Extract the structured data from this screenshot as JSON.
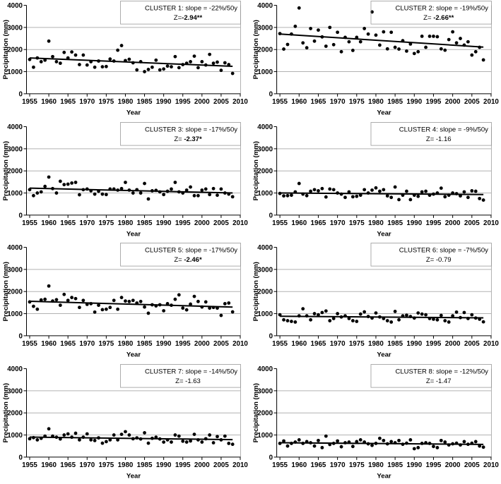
{
  "figure": {
    "description": "Annual precipitation time series and linear trends for eight clusters"
  },
  "colors": {
    "axis": "#000000",
    "grid": "#b2b2b2",
    "plot_right_border": "#b2b2b2",
    "marker": "#000000",
    "trend": "#000000",
    "annotation_border": "#999999",
    "background": "#ffffff"
  },
  "chart_data": {
    "type": "scatter",
    "xlabel": "Year",
    "ylabel": "Precipitation (mm)",
    "xlim": [
      1955,
      2010
    ],
    "ylim": [
      0,
      4000
    ],
    "xticks": [
      1955,
      1960,
      1965,
      1970,
      1975,
      1980,
      1985,
      1990,
      1995,
      2000,
      2005,
      2010
    ],
    "yticks": [
      0,
      1000,
      2000,
      3000,
      4000
    ],
    "gridlines_y": [
      1000,
      2000,
      3000
    ],
    "legend_position": "none",
    "start_year": 1955,
    "trend_end_year": 2008,
    "clusters": [
      {
        "label": "CLUSTER 1: slope = -22%/50y",
        "z_prefix": "Z=",
        "z_value": "-2.94**",
        "z_bold": true,
        "trend": [
          1620,
          1240
        ],
        "values": [
          1550,
          1200,
          1620,
          1450,
          1520,
          2380,
          1680,
          1450,
          1380,
          1870,
          1620,
          1890,
          1750,
          1320,
          1750,
          1300,
          1450,
          1200,
          1480,
          1220,
          1230,
          1570,
          1480,
          1970,
          2180,
          1500,
          1560,
          1400,
          1080,
          1450,
          1000,
          1100,
          1200,
          1520,
          1080,
          1120,
          1250,
          1220,
          1680,
          1180,
          1320,
          1380,
          1450,
          1700,
          1180,
          1450,
          1300,
          1780,
          1380,
          1430,
          1060,
          1400,
          1320,
          920
        ]
      },
      {
        "label": "CLUSTER 2: slope = -19%/50y",
        "z_prefix": "Z= ",
        "z_value": "-2.66**",
        "z_bold": true,
        "trend": [
          2700,
          2110
        ],
        "values": [
          2720,
          2020,
          2230,
          2700,
          3050,
          3880,
          2300,
          2080,
          2950,
          2380,
          2880,
          2570,
          2150,
          3000,
          2220,
          2780,
          1900,
          2550,
          2350,
          1960,
          2550,
          2350,
          2950,
          2700,
          3700,
          2650,
          2200,
          2800,
          2030,
          2780,
          2100,
          2020,
          2400,
          1930,
          2250,
          1820,
          1900,
          2600,
          2100,
          2600,
          2600,
          2580,
          2030,
          1970,
          2450,
          2800,
          2300,
          2500,
          2200,
          2350,
          1750,
          1900,
          2100,
          1530
        ]
      },
      {
        "label": "CLUSTER 3: slope = -17%/50y",
        "z_prefix": "Z= ",
        "z_value": "-2.37*",
        "z_bold": true,
        "trend": [
          1220,
          1000
        ],
        "values": [
          1150,
          880,
          1000,
          1050,
          1300,
          1720,
          1200,
          1000,
          1530,
          1380,
          1400,
          1450,
          1480,
          920,
          1150,
          1180,
          1100,
          950,
          1080,
          950,
          930,
          1180,
          1180,
          1130,
          1200,
          1480,
          1130,
          1000,
          1150,
          1000,
          1430,
          730,
          1100,
          1120,
          1050,
          930,
          1080,
          1180,
          1480,
          1050,
          1000,
          1130,
          1270,
          880,
          880,
          1130,
          1180,
          930,
          1200,
          900,
          1180,
          1000,
          950,
          830
        ]
      },
      {
        "label": "CLUSTER 4: slope = -9%/50y",
        "z_prefix": "Z= ",
        "z_value": "-1.16",
        "z_bold": false,
        "trend": [
          1000,
          930
        ],
        "values": [
          980,
          870,
          880,
          900,
          1050,
          1430,
          950,
          880,
          1080,
          1150,
          1100,
          1200,
          820,
          1180,
          1150,
          1000,
          950,
          800,
          1050,
          830,
          850,
          900,
          1150,
          1000,
          1130,
          1230,
          1080,
          1150,
          870,
          800,
          1270,
          700,
          900,
          1080,
          700,
          900,
          850,
          1050,
          1080,
          900,
          950,
          1000,
          1220,
          830,
          900,
          1000,
          970,
          870,
          1050,
          800,
          1100,
          1080,
          750,
          680
        ]
      },
      {
        "label": "CLUSTER 5: slope = -17%/50y",
        "z_prefix": "Z= ",
        "z_value": "-2.46*",
        "z_bold": true,
        "trend": [
          1560,
          1295
        ],
        "values": [
          1530,
          1330,
          1200,
          1620,
          1650,
          2250,
          1570,
          1630,
          1380,
          1870,
          1600,
          1730,
          1680,
          1280,
          1600,
          1420,
          1450,
          1070,
          1380,
          1180,
          1200,
          1280,
          1600,
          1200,
          1730,
          1570,
          1550,
          1600,
          1480,
          1550,
          1300,
          1020,
          1400,
          1350,
          1400,
          1130,
          1450,
          1380,
          1650,
          1850,
          1250,
          1170,
          1430,
          1780,
          1550,
          1300,
          1530,
          1250,
          1280,
          1250,
          920,
          1450,
          1480,
          1080
        ]
      },
      {
        "label": "CLUSTER 6: slope = -7%/50y",
        "z_prefix": "Z= ",
        "z_value": "-0.79",
        "z_bold": false,
        "trend": [
          880,
          810
        ],
        "values": [
          950,
          720,
          680,
          650,
          620,
          900,
          1220,
          900,
          720,
          1000,
          950,
          1050,
          1120,
          680,
          780,
          1000,
          850,
          900,
          780,
          680,
          650,
          980,
          1080,
          870,
          800,
          1030,
          850,
          780,
          680,
          620,
          1100,
          720,
          900,
          930,
          870,
          800,
          1030,
          980,
          950,
          780,
          750,
          720,
          920,
          680,
          620,
          900,
          1070,
          820,
          1050,
          780,
          950,
          800,
          750,
          630
        ]
      },
      {
        "label": "CLUSTER 7: slope = -14%/50y",
        "z_prefix": "Z= ",
        "z_value": "-1.63",
        "z_bold": false,
        "trend": [
          905,
          790
        ],
        "values": [
          830,
          880,
          780,
          850,
          950,
          1280,
          950,
          900,
          820,
          1000,
          1050,
          900,
          1080,
          780,
          900,
          1050,
          780,
          750,
          870,
          630,
          700,
          780,
          1000,
          780,
          1030,
          1150,
          1000,
          830,
          870,
          820,
          1100,
          630,
          850,
          900,
          820,
          680,
          780,
          680,
          1000,
          950,
          720,
          680,
          730,
          1030,
          780,
          680,
          830,
          1000,
          650,
          930,
          780,
          950,
          620,
          580
        ]
      },
      {
        "label": "CLUSTER 8: slope = -12%/50y",
        "z_prefix": "Z= ",
        "z_value": "-1.47",
        "z_bold": false,
        "trend": [
          650,
          575
        ],
        "values": [
          620,
          730,
          500,
          620,
          680,
          780,
          620,
          700,
          650,
          500,
          750,
          430,
          950,
          570,
          620,
          730,
          470,
          650,
          680,
          480,
          700,
          780,
          680,
          600,
          530,
          620,
          850,
          750,
          600,
          700,
          650,
          750,
          580,
          630,
          780,
          380,
          430,
          620,
          650,
          620,
          480,
          430,
          750,
          680,
          550,
          600,
          630,
          550,
          700,
          580,
          630,
          700,
          500,
          450
        ]
      }
    ]
  }
}
